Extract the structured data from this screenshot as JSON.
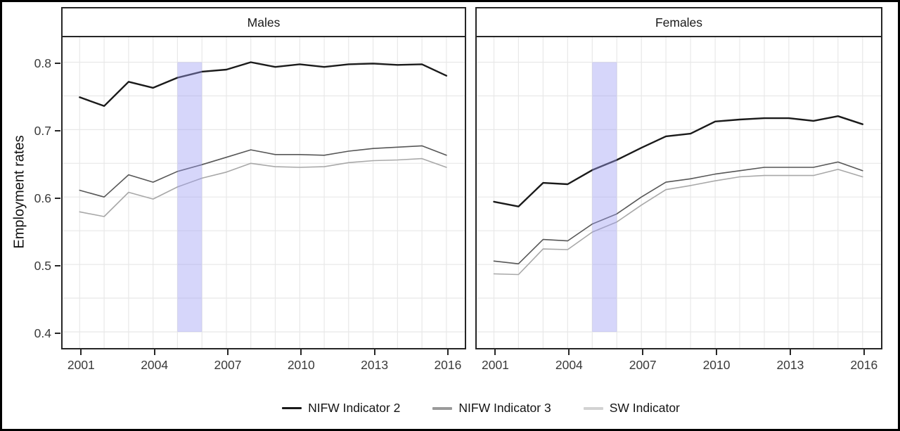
{
  "figure": {
    "ylabel": "Employment rates"
  },
  "chart_data": [
    {
      "type": "line",
      "title": "Males",
      "xlabel": "",
      "ylabel": "Employment rates",
      "xlim": [
        2000.3,
        2016.75
      ],
      "ylim": [
        0.376,
        0.837
      ],
      "xticks": [
        "2001",
        "2004",
        "2007",
        "2010",
        "2013",
        "2016"
      ],
      "xtick_values": [
        2001,
        2004,
        2007,
        2010,
        2013,
        2016
      ],
      "yticks": [
        "0.4",
        "0.5",
        "0.6",
        "0.7",
        "0.8"
      ],
      "ytick_values": [
        0.4,
        0.5,
        0.6,
        0.7,
        0.8
      ],
      "grid": "on",
      "x": [
        2001,
        2002,
        2003,
        2004,
        2005,
        2006,
        2007,
        2008,
        2009,
        2010,
        2011,
        2012,
        2013,
        2014,
        2015,
        2016
      ],
      "series": [
        {
          "name": "NIFW Indicator 2",
          "color": "#1a1a1a",
          "width": 2.4,
          "values": [
            0.748,
            0.735,
            0.771,
            0.762,
            0.777,
            0.786,
            0.789,
            0.8,
            0.793,
            0.797,
            0.793,
            0.797,
            0.798,
            0.796,
            0.797,
            0.78
          ]
        },
        {
          "name": "NIFW Indicator 3",
          "color": "#575757",
          "width": 1.6,
          "values": [
            0.61,
            0.6,
            0.633,
            0.622,
            0.638,
            0.648,
            0.659,
            0.67,
            0.663,
            0.663,
            0.662,
            0.668,
            0.672,
            0.674,
            0.676,
            0.662
          ]
        },
        {
          "name": "SW Indicator",
          "color": "#a8a8a8",
          "width": 1.6,
          "values": [
            0.578,
            0.571,
            0.607,
            0.597,
            0.615,
            0.628,
            0.637,
            0.65,
            0.645,
            0.644,
            0.645,
            0.651,
            0.654,
            0.655,
            0.657,
            0.644
          ]
        }
      ],
      "shaded_band": {
        "x_start": 2005,
        "x_end": 2006,
        "y_start": 0.4,
        "y_end": 0.8,
        "fill": "#9e9ef2",
        "opacity": 0.42
      }
    },
    {
      "type": "line",
      "title": "Females",
      "xlabel": "",
      "ylabel": "Employment rates",
      "xlim": [
        2000.3,
        2016.75
      ],
      "ylim": [
        0.376,
        0.837
      ],
      "xticks": [
        "2001",
        "2004",
        "2007",
        "2010",
        "2013",
        "2016"
      ],
      "xtick_values": [
        2001,
        2004,
        2007,
        2010,
        2013,
        2016
      ],
      "yticks": [
        "0.4",
        "0.5",
        "0.6",
        "0.7",
        "0.8"
      ],
      "ytick_values": [
        0.4,
        0.5,
        0.6,
        0.7,
        0.8
      ],
      "grid": "on",
      "x": [
        2001,
        2002,
        2003,
        2004,
        2005,
        2006,
        2007,
        2008,
        2009,
        2010,
        2011,
        2012,
        2013,
        2014,
        2015,
        2016
      ],
      "series": [
        {
          "name": "NIFW Indicator 2",
          "color": "#1a1a1a",
          "width": 2.4,
          "values": [
            0.593,
            0.586,
            0.621,
            0.619,
            0.64,
            0.655,
            0.673,
            0.69,
            0.694,
            0.712,
            0.715,
            0.717,
            0.717,
            0.713,
            0.72,
            0.708
          ]
        },
        {
          "name": "NIFW Indicator 3",
          "color": "#575757",
          "width": 1.6,
          "values": [
            0.505,
            0.501,
            0.537,
            0.535,
            0.56,
            0.575,
            0.6,
            0.622,
            0.627,
            0.634,
            0.639,
            0.644,
            0.644,
            0.644,
            0.652,
            0.639
          ]
        },
        {
          "name": "SW Indicator",
          "color": "#a8a8a8",
          "width": 1.6,
          "values": [
            0.486,
            0.485,
            0.523,
            0.522,
            0.548,
            0.563,
            0.588,
            0.611,
            0.617,
            0.624,
            0.63,
            0.632,
            0.632,
            0.632,
            0.641,
            0.63
          ]
        }
      ],
      "shaded_band": {
        "x_start": 2005,
        "x_end": 2006,
        "y_start": 0.4,
        "y_end": 0.8,
        "fill": "#9e9ef2",
        "opacity": 0.42
      }
    }
  ],
  "legend": {
    "position": "bottom-center",
    "items": [
      {
        "label": "NIFW Indicator 2",
        "swatch_color": "#1a1a1a",
        "swatch_height": 2.5
      },
      {
        "label": "NIFW Indicator 3",
        "swatch_color": "#9a9a9a",
        "swatch_height": 4
      },
      {
        "label": "SW Indicator",
        "swatch_color": "#d2d2d2",
        "swatch_height": 4
      }
    ]
  },
  "style": {
    "gridline_color": "#e8e8e8",
    "panel_border_color": "#262626",
    "band_fill": "#d9d9f6"
  }
}
